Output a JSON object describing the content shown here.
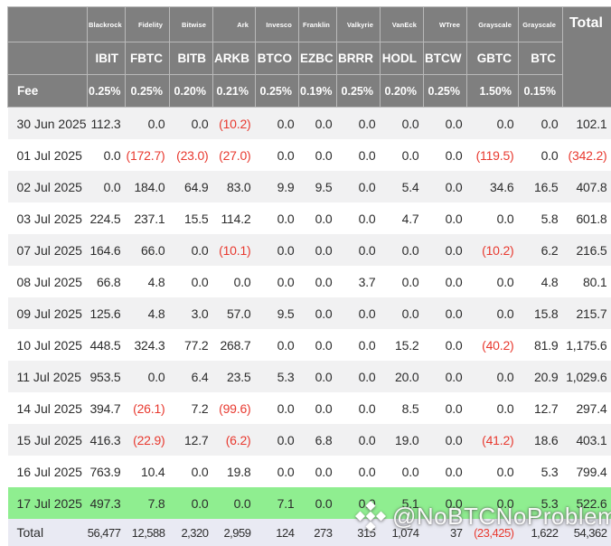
{
  "chart_data": {
    "type": "table",
    "fee_label": "Fee",
    "total_column_label": "Total",
    "total_row_label": "Total",
    "issuers": [
      "Blackrock",
      "Fidelity",
      "Bitwise",
      "Ark",
      "Invesco",
      "Franklin",
      "Valkyrie",
      "VanEck",
      "WTree",
      "Grayscale",
      "Grayscale"
    ],
    "tickers": [
      "IBIT",
      "FBTC",
      "BITB",
      "ARKB",
      "BTCO",
      "EZBC",
      "BRRR",
      "HODL",
      "BTCW",
      "GBTC",
      "BTC"
    ],
    "fees": [
      "0.25%",
      "0.25%",
      "0.20%",
      "0.21%",
      "0.25%",
      "0.19%",
      "0.25%",
      "0.20%",
      "0.25%",
      "1.50%",
      "0.15%"
    ],
    "rows": [
      {
        "date": "30 Jun 2025",
        "values": [
          112.3,
          0,
          0,
          -10.2,
          0,
          0,
          0,
          0,
          0,
          0,
          0
        ],
        "total": 102.1,
        "highlight": false
      },
      {
        "date": "01 Jul 2025",
        "values": [
          0,
          -172.7,
          -23.0,
          -27.0,
          0,
          0,
          0,
          0,
          0,
          -119.5,
          0
        ],
        "total": -342.2,
        "highlight": false
      },
      {
        "date": "02 Jul 2025",
        "values": [
          0,
          184.0,
          64.9,
          83.0,
          9.9,
          9.5,
          0,
          5.4,
          0,
          34.6,
          16.5
        ],
        "total": 407.8,
        "highlight": false
      },
      {
        "date": "03 Jul 2025",
        "values": [
          224.5,
          237.1,
          15.5,
          114.2,
          0,
          0,
          0,
          4.7,
          0,
          0,
          5.8
        ],
        "total": 601.8,
        "highlight": false
      },
      {
        "date": "07 Jul 2025",
        "values": [
          164.6,
          66.0,
          0,
          -10.1,
          0,
          0,
          0,
          0,
          0,
          -10.2,
          6.2
        ],
        "total": 216.5,
        "highlight": false
      },
      {
        "date": "08 Jul 2025",
        "values": [
          66.8,
          4.8,
          0,
          0,
          0,
          0,
          3.7,
          0,
          0,
          0,
          4.8
        ],
        "total": 80.1,
        "highlight": false
      },
      {
        "date": "09 Jul 2025",
        "values": [
          125.6,
          4.8,
          3.0,
          57.0,
          9.5,
          0,
          0,
          0,
          0,
          0,
          15.8
        ],
        "total": 215.7,
        "highlight": false
      },
      {
        "date": "10 Jul 2025",
        "values": [
          448.5,
          324.3,
          77.2,
          268.7,
          0,
          0,
          0,
          15.2,
          0,
          -40.2,
          81.9
        ],
        "total": 1175.6,
        "highlight": false
      },
      {
        "date": "11 Jul 2025",
        "values": [
          953.5,
          0,
          6.4,
          23.5,
          5.3,
          0,
          0,
          20.0,
          0,
          0,
          20.9
        ],
        "total": 1029.6,
        "highlight": false
      },
      {
        "date": "14 Jul 2025",
        "values": [
          394.7,
          -26.1,
          7.2,
          -99.6,
          0,
          0,
          0,
          8.5,
          0,
          0,
          12.7
        ],
        "total": 297.4,
        "highlight": false
      },
      {
        "date": "15 Jul 2025",
        "values": [
          416.3,
          -22.9,
          12.7,
          -6.2,
          0,
          6.8,
          0,
          19.0,
          0,
          -41.2,
          18.6
        ],
        "total": 403.1,
        "highlight": false
      },
      {
        "date": "16 Jul 2025",
        "values": [
          763.9,
          10.4,
          0,
          19.8,
          0,
          0,
          0,
          0,
          0,
          0,
          5.3
        ],
        "total": 799.4,
        "highlight": false
      },
      {
        "date": "17 Jul 2025",
        "values": [
          497.3,
          7.8,
          0,
          0,
          7.1,
          0,
          0,
          5.1,
          0,
          0,
          5.3
        ],
        "total": 522.6,
        "highlight": true
      }
    ],
    "totals": {
      "values": [
        56477,
        12588,
        2320,
        2959,
        124,
        273,
        315,
        1074,
        37,
        -23425,
        1622
      ],
      "total": 54362
    }
  },
  "watermark": {
    "text": "@NoBTCNoProblem",
    "icon": "binance-diamond-logo"
  },
  "colors": {
    "header_bg": "#7f7f7f",
    "header_text": "#ffffff",
    "header_divider": "#b9b9b9",
    "row_alt_bg": "#f1f1f2",
    "highlight_row_bg": "#8fee90",
    "total_row_bg": "#e9eaf3",
    "negative_text": "#e8392f",
    "body_text": "#2c2c2c"
  }
}
